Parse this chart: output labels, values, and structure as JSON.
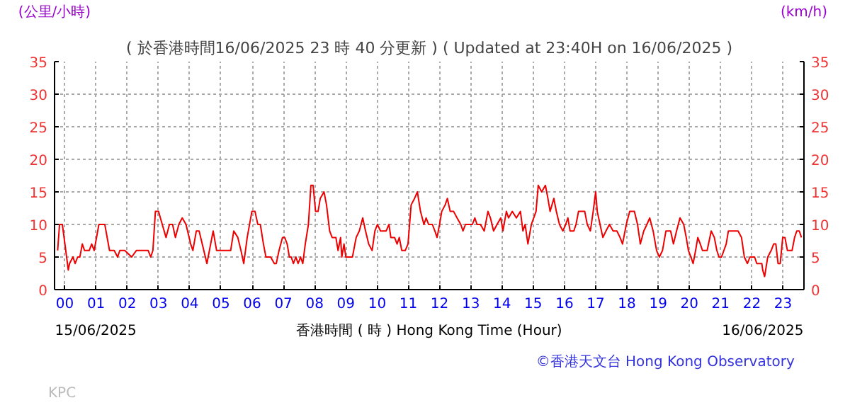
{
  "chart_data": {
    "type": "line",
    "title": "( 於香港時間16/06/2025 23 時 40 分更新 ) ( Updated at 23:40H on 16/06/2025 )",
    "ylabel": "(公里/小時)",
    "y2label": "(km/h)",
    "xlabel": "香港時間 ( 時 ) Hong Kong Time (Hour)",
    "annotations": [
      "15/06/2025",
      "16/06/2025",
      "KPC",
      "©香港天文台 Hong Kong Observatory"
    ],
    "xlim": [
      -0.33,
      23.67
    ],
    "xticks": [
      {
        "value": 0,
        "label": "00"
      },
      {
        "value": 1,
        "label": "01"
      },
      {
        "value": 2,
        "label": "02"
      },
      {
        "value": 3,
        "label": "03"
      },
      {
        "value": 4,
        "label": "04"
      },
      {
        "value": 5,
        "label": "05"
      },
      {
        "value": 6,
        "label": "06"
      },
      {
        "value": 7,
        "label": "07"
      },
      {
        "value": 8,
        "label": "08"
      },
      {
        "value": 9,
        "label": "09"
      },
      {
        "value": 10,
        "label": "10"
      },
      {
        "value": 11,
        "label": "11"
      },
      {
        "value": 12,
        "label": "12"
      },
      {
        "value": 13,
        "label": "13"
      },
      {
        "value": 14,
        "label": "14"
      },
      {
        "value": 15,
        "label": "15"
      },
      {
        "value": 16,
        "label": "16"
      },
      {
        "value": 17,
        "label": "17"
      },
      {
        "value": 18,
        "label": "18"
      },
      {
        "value": 19,
        "label": "19"
      },
      {
        "value": 20,
        "label": "20"
      },
      {
        "value": 21,
        "label": "21"
      },
      {
        "value": 22,
        "label": "22"
      },
      {
        "value": 23,
        "label": "23"
      }
    ],
    "ylim": [
      0,
      35
    ],
    "yticks": [
      0,
      5,
      10,
      15,
      20,
      25,
      30,
      35
    ],
    "y2lim": [
      0,
      35
    ],
    "y2ticks": [
      0,
      5,
      10,
      15,
      20,
      25,
      30,
      35
    ],
    "grid": true,
    "series": [
      {
        "color": "#ee0000",
        "x": [
          -0.23,
          -0.17,
          -0.08,
          0.03,
          0.11,
          0.15,
          0.26,
          0.33,
          0.41,
          0.48,
          0.56,
          0.63,
          0.78,
          0.86,
          0.94,
          1.09,
          1.28,
          1.43,
          1.58,
          1.69,
          1.76,
          1.92,
          2.14,
          2.29,
          2.67,
          2.75,
          2.82,
          2.9,
          3.0,
          3.12,
          3.24,
          3.35,
          3.45,
          3.54,
          3.65,
          3.76,
          3.88,
          4.03,
          4.1,
          4.21,
          4.3,
          4.4,
          4.55,
          4.63,
          4.75,
          4.86,
          4.96,
          5.08,
          5.23,
          5.31,
          5.41,
          5.54,
          5.64,
          5.73,
          5.84,
          5.99,
          6.09,
          6.18,
          6.26,
          6.36,
          6.44,
          6.59,
          6.71,
          6.77,
          6.86,
          6.97,
          7.04,
          7.12,
          7.19,
          7.25,
          7.32,
          7.4,
          7.47,
          7.55,
          7.62,
          7.7,
          7.8,
          7.88,
          7.95,
          8.03,
          8.11,
          8.18,
          8.3,
          8.38,
          8.48,
          8.56,
          8.68,
          8.75,
          8.83,
          8.87,
          8.94,
          9.0,
          9.13,
          9.21,
          9.33,
          9.43,
          9.54,
          9.63,
          9.73,
          9.84,
          9.93,
          10.01,
          10.11,
          10.19,
          10.29,
          10.38,
          10.44,
          10.56,
          10.64,
          10.71,
          10.79,
          10.9,
          10.99,
          11.09,
          11.2,
          11.29,
          11.39,
          11.5,
          11.57,
          11.65,
          11.77,
          11.85,
          11.92,
          12.0,
          12.07,
          12.18,
          12.25,
          12.34,
          12.45,
          12.56,
          12.68,
          12.75,
          12.83,
          13.05,
          13.13,
          13.2,
          13.31,
          13.43,
          13.55,
          13.63,
          13.73,
          13.84,
          13.96,
          14.03,
          14.14,
          14.21,
          14.33,
          14.46,
          14.59,
          14.67,
          14.74,
          14.83,
          14.94,
          15.09,
          15.16,
          15.27,
          15.39,
          15.47,
          15.54,
          15.66,
          15.74,
          15.84,
          15.95,
          16.04,
          16.11,
          16.18,
          16.3,
          16.37,
          16.45,
          16.52,
          16.6,
          16.65,
          16.73,
          16.83,
          16.92,
          17.0,
          17.05,
          17.14,
          17.23,
          17.33,
          17.44,
          17.56,
          17.68,
          17.78,
          17.86,
          17.98,
          18.09,
          18.24,
          18.34,
          18.43,
          18.54,
          18.64,
          18.73,
          18.84,
          18.95,
          19.04,
          19.14,
          19.25,
          19.4,
          19.49,
          19.59,
          19.7,
          19.82,
          19.9,
          19.97,
          20.05,
          20.12,
          20.2,
          20.27,
          20.35,
          20.42,
          20.57,
          20.7,
          20.8,
          20.88,
          20.95,
          21.03,
          21.18,
          21.25,
          21.4,
          21.56,
          21.67,
          21.76,
          21.86,
          21.94,
          22.09,
          22.16,
          22.32,
          22.35,
          22.41,
          22.51,
          22.62,
          22.7,
          22.77,
          22.84,
          22.91,
          22.99,
          23.06,
          23.14,
          23.29,
          23.37,
          23.44,
          23.52,
          23.59
        ],
        "values": [
          6,
          10,
          10,
          6,
          3,
          4,
          5,
          4,
          5,
          5,
          7,
          6,
          6,
          7,
          6,
          10,
          10,
          6,
          6,
          5,
          6,
          6,
          5,
          6,
          6,
          5,
          6,
          12,
          12,
          10,
          8,
          10,
          10,
          8,
          10,
          11,
          10,
          7,
          6,
          9,
          9,
          7,
          4,
          6,
          9,
          6,
          6,
          6,
          6,
          6,
          9,
          8,
          6,
          4,
          8,
          12,
          12,
          10,
          10,
          7,
          5,
          5,
          4,
          4,
          6,
          8,
          8,
          7,
          5,
          5,
          4,
          5,
          4,
          5,
          4,
          7,
          10,
          16,
          16,
          12,
          12,
          14,
          15,
          13,
          9,
          8,
          8,
          6,
          8,
          5,
          7,
          5,
          5,
          5,
          8,
          9,
          11,
          9,
          7,
          6,
          9,
          10,
          9,
          9,
          9,
          10,
          8,
          8,
          7,
          8,
          6,
          6,
          7,
          13,
          14,
          15,
          12,
          10,
          11,
          10,
          10,
          9,
          8,
          10,
          12,
          13,
          14,
          12,
          12,
          11,
          10,
          9,
          10,
          10,
          11,
          10,
          10,
          9,
          12,
          11,
          9,
          10,
          11,
          9,
          12,
          11,
          12,
          11,
          12,
          9,
          10,
          7,
          10,
          12,
          16,
          15,
          16,
          14,
          12,
          14,
          12,
          10,
          9,
          10,
          11,
          9,
          9,
          10,
          12,
          12,
          12,
          12,
          10,
          9,
          12,
          15,
          12,
          10,
          8,
          9,
          10,
          9,
          9,
          8,
          7,
          10,
          12,
          12,
          10,
          7,
          9,
          10,
          11,
          9,
          6,
          5,
          6,
          9,
          9,
          7,
          9,
          11,
          10,
          8,
          6,
          5,
          4,
          6,
          8,
          7,
          6,
          6,
          9,
          8,
          6,
          5,
          5,
          7,
          9,
          9,
          9,
          8,
          5,
          4,
          5,
          5,
          4,
          4,
          3,
          2,
          5,
          6,
          7,
          7,
          4,
          4,
          8,
          8,
          6,
          6,
          8,
          9,
          9,
          8
        ]
      }
    ]
  }
}
